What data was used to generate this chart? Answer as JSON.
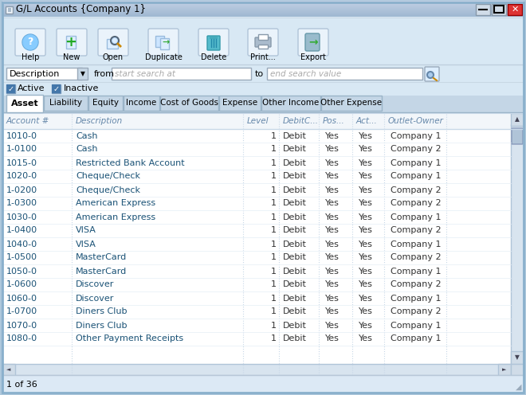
{
  "title": "G/L Accounts {Company 1}",
  "toolbar_buttons": [
    "Help",
    "New",
    "Open",
    "Duplicate",
    "Delete",
    "Print...",
    "Export"
  ],
  "search_label": "Description",
  "search_from": "start search at",
  "search_to": "end search value",
  "checkboxes": [
    "Active",
    "Inactive"
  ],
  "tabs": [
    "Asset",
    "Liability",
    "Equity",
    "Income",
    "Cost of Goods",
    "Expense",
    "Other Income",
    "Other Expense"
  ],
  "active_tab": "Asset",
  "col_headers": [
    "Account #",
    "Description",
    "Level",
    "DebitC...",
    "Pos...",
    "Act...",
    "Outlet-Owner"
  ],
  "rows": [
    [
      "1010-0",
      "Cash",
      "1",
      "Debit",
      "Yes",
      "Yes",
      "Company 1"
    ],
    [
      "1-0100",
      "Cash",
      "1",
      "Debit",
      "Yes",
      "Yes",
      "Company 2"
    ],
    [
      "1015-0",
      "Restricted Bank Account",
      "1",
      "Debit",
      "Yes",
      "Yes",
      "Company 1"
    ],
    [
      "1020-0",
      "Cheque/Check",
      "1",
      "Debit",
      "Yes",
      "Yes",
      "Company 1"
    ],
    [
      "1-0200",
      "Cheque/Check",
      "1",
      "Debit",
      "Yes",
      "Yes",
      "Company 2"
    ],
    [
      "1-0300",
      "American Express",
      "1",
      "Debit",
      "Yes",
      "Yes",
      "Company 2"
    ],
    [
      "1030-0",
      "American Express",
      "1",
      "Debit",
      "Yes",
      "Yes",
      "Company 1"
    ],
    [
      "1-0400",
      "VISA",
      "1",
      "Debit",
      "Yes",
      "Yes",
      "Company 2"
    ],
    [
      "1040-0",
      "VISA",
      "1",
      "Debit",
      "Yes",
      "Yes",
      "Company 1"
    ],
    [
      "1-0500",
      "MasterCard",
      "1",
      "Debit",
      "Yes",
      "Yes",
      "Company 2"
    ],
    [
      "1050-0",
      "MasterCard",
      "1",
      "Debit",
      "Yes",
      "Yes",
      "Company 1"
    ],
    [
      "1-0600",
      "Discover",
      "1",
      "Debit",
      "Yes",
      "Yes",
      "Company 2"
    ],
    [
      "1060-0",
      "Discover",
      "1",
      "Debit",
      "Yes",
      "Yes",
      "Company 1"
    ],
    [
      "1-0700",
      "Diners Club",
      "1",
      "Debit",
      "Yes",
      "Yes",
      "Company 2"
    ],
    [
      "1070-0",
      "Diners Club",
      "1",
      "Debit",
      "Yes",
      "Yes",
      "Company 1"
    ],
    [
      "1080-0",
      "Other Payment Receipts",
      "1",
      "Debit",
      "Yes",
      "Yes",
      "Company 1"
    ]
  ],
  "status_bar": "1 of 36",
  "outer_border_color": "#8ab0cc",
  "window_bg": "#dce9f5",
  "titlebar_top": "#b8d4e8",
  "titlebar_bot": "#7aaac8",
  "toolbar_bg": "#d8e8f4",
  "table_bg": "#ffffff",
  "tab_active_bg": "#ffffff",
  "tab_inactive_bg": "#c4d6e6",
  "tab_border": "#9ab0c4",
  "header_text_color": "#6688aa",
  "row_text_color": "#1a5276",
  "data_text_color": "#333333",
  "scrollbar_bg": "#d8e4ef",
  "scrollbar_thumb": "#b0c4d8",
  "status_bg": "#dce9f5",
  "sep_color": "#c8d8e8",
  "row_sep_color": "#e4eef6"
}
